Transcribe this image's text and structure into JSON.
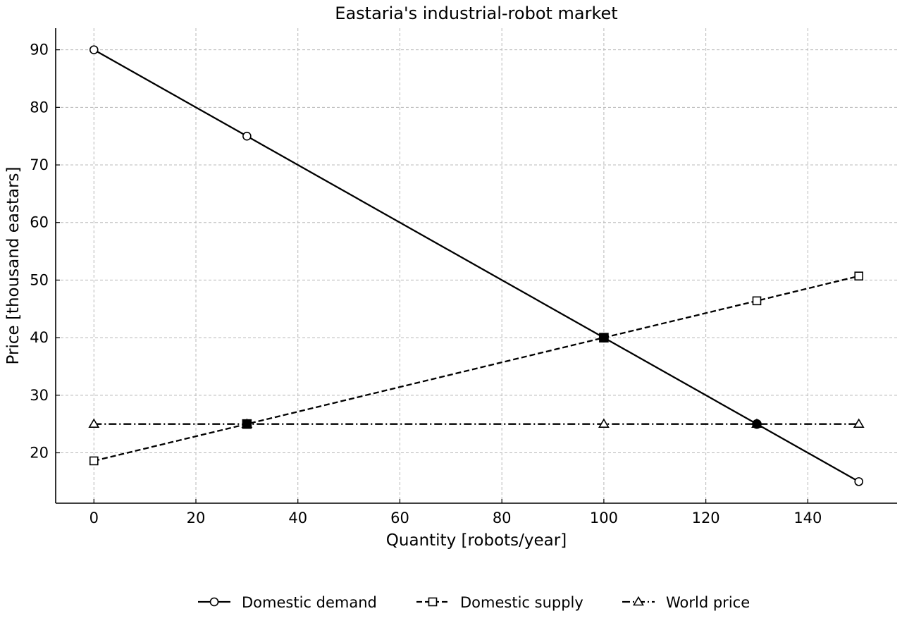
{
  "chart_data": {
    "type": "line",
    "title": "Eastaria's industrial-robot market",
    "xlabel": "Quantity [robots/year]",
    "ylabel": "Price [thousand eastars]",
    "xlim": [
      -7.5,
      157.5
    ],
    "ylim": [
      11.25,
      93.75
    ],
    "xticks": [
      0,
      20,
      40,
      60,
      80,
      100,
      120,
      140
    ],
    "yticks": [
      20,
      30,
      40,
      50,
      60,
      70,
      80,
      90
    ],
    "grid": true,
    "legend_position": "bottom",
    "series": [
      {
        "name": "Domestic demand",
        "style": "solid",
        "marker": "circle",
        "color": "#000000",
        "points": [
          [
            0,
            90
          ],
          [
            30,
            75
          ],
          [
            100,
            40
          ],
          [
            130,
            25
          ],
          [
            150,
            15
          ]
        ]
      },
      {
        "name": "Domestic supply",
        "style": "dashed",
        "marker": "square",
        "color": "#000000",
        "points": [
          [
            0,
            18.6
          ],
          [
            30,
            25
          ],
          [
            100,
            40
          ],
          [
            130,
            46.4
          ],
          [
            150,
            50.7
          ]
        ]
      },
      {
        "name": "World price",
        "style": "dashdot",
        "marker": "triangle",
        "color": "#000000",
        "points": [
          [
            0,
            25
          ],
          [
            30,
            25
          ],
          [
            100,
            25
          ],
          [
            130,
            25
          ],
          [
            150,
            25
          ]
        ]
      }
    ],
    "highlighted_points": [
      {
        "x": 30,
        "y": 25,
        "marker": "square"
      },
      {
        "x": 100,
        "y": 40,
        "marker": "square"
      },
      {
        "x": 100,
        "y": 40,
        "marker": "circle"
      },
      {
        "x": 130,
        "y": 25,
        "marker": "circle"
      }
    ]
  }
}
